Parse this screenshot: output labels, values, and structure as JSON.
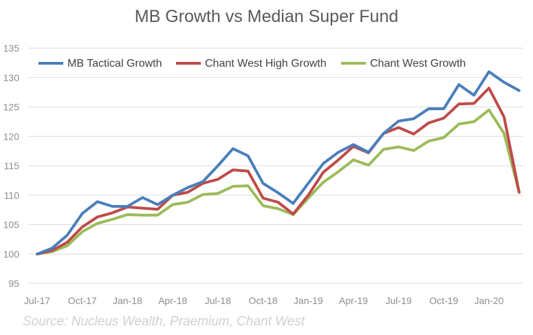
{
  "chart_data": {
    "type": "line",
    "title": "MB Growth vs Median Super Fund",
    "xlabel": "",
    "ylabel": "",
    "ylim": [
      95,
      135
    ],
    "yticks": [
      95,
      100,
      105,
      110,
      115,
      120,
      125,
      130,
      135
    ],
    "grid": true,
    "legend": "top-left",
    "x": [
      "Jul-17",
      "Aug-17",
      "Sep-17",
      "Oct-17",
      "Nov-17",
      "Dec-17",
      "Jan-18",
      "Feb-18",
      "Mar-18",
      "Apr-18",
      "May-18",
      "Jun-18",
      "Jul-18",
      "Aug-18",
      "Sep-18",
      "Oct-18",
      "Nov-18",
      "Dec-18",
      "Jan-19",
      "Feb-19",
      "Mar-19",
      "Apr-19",
      "May-19",
      "Jun-19",
      "Jul-19",
      "Aug-19",
      "Sep-19",
      "Oct-19",
      "Nov-19",
      "Dec-19",
      "Jan-20",
      "Feb-20",
      "Mar-20"
    ],
    "xtick_labels": [
      "Jul-17",
      "Oct-17",
      "Jan-18",
      "Apr-18",
      "Jul-18",
      "Oct-18",
      "Jan-19",
      "Apr-19",
      "Jul-19",
      "Oct-19",
      "Jan-20"
    ],
    "series": [
      {
        "name": "MB Tactical Growth",
        "color": "#4a7ebb",
        "values": [
          100.0,
          101.0,
          103.2,
          106.9,
          108.9,
          108.1,
          108.1,
          109.6,
          108.4,
          110.0,
          111.3,
          112.3,
          115.0,
          117.9,
          116.7,
          112.0,
          110.4,
          108.6,
          112.0,
          115.4,
          117.3,
          118.6,
          117.3,
          120.5,
          122.6,
          123.0,
          124.7,
          124.7,
          128.8,
          127.0,
          131.0,
          129.2,
          127.8
        ]
      },
      {
        "name": "Chant West High Growth",
        "color": "#be4b48",
        "values": [
          100.0,
          100.6,
          102.0,
          104.6,
          106.3,
          107.0,
          108.0,
          107.8,
          107.6,
          110.0,
          110.5,
          112.0,
          112.7,
          114.3,
          114.1,
          109.5,
          108.8,
          106.8,
          110.0,
          113.9,
          116.0,
          118.3,
          117.2,
          120.5,
          121.5,
          120.4,
          122.3,
          123.1,
          125.5,
          125.6,
          128.2,
          123.3,
          110.5
        ]
      },
      {
        "name": "Chant West Growth",
        "color": "#9bbb59",
        "values": [
          100.0,
          100.4,
          101.4,
          103.8,
          105.2,
          105.9,
          106.7,
          106.6,
          106.6,
          108.4,
          108.8,
          110.1,
          110.3,
          111.5,
          111.6,
          108.2,
          107.7,
          106.7,
          109.5,
          112.2,
          114.0,
          116.0,
          115.1,
          117.8,
          118.2,
          117.6,
          119.2,
          119.8,
          122.1,
          122.5,
          124.5,
          120.5,
          110.5
        ]
      }
    ]
  },
  "source": "Source: Nucleus Wealth, Praemium, Chant West"
}
